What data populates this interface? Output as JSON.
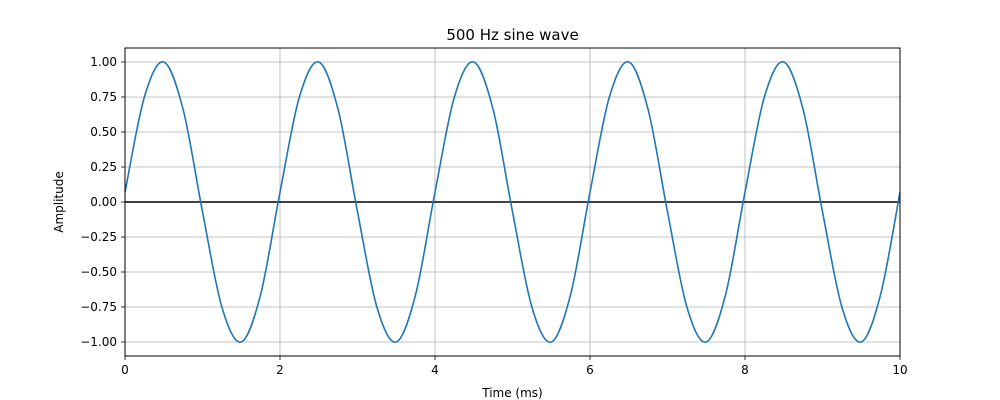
{
  "chart_data": {
    "type": "line",
    "title": "500 Hz sine wave",
    "xlabel": "Time (ms)",
    "ylabel": "Amplitude",
    "xlim": [
      0,
      10
    ],
    "ylim": [
      -1.1,
      1.1
    ],
    "xticks": [
      0,
      2,
      4,
      6,
      8,
      10
    ],
    "xtick_labels": [
      "0",
      "2",
      "4",
      "6",
      "8",
      "10"
    ],
    "yticks": [
      -1.0,
      -0.75,
      -0.5,
      -0.25,
      0.0,
      0.25,
      0.5,
      0.75,
      1.0
    ],
    "ytick_labels": [
      "−1.00",
      "−0.75",
      "−0.50",
      "−0.25",
      "0.00",
      "0.25",
      "0.50",
      "0.75",
      "1.00"
    ],
    "grid": true,
    "series": [
      {
        "color": "#1f77b4",
        "x": [
          0,
          0.25,
          0.5,
          0.75,
          1,
          1.25,
          1.5,
          1.75,
          2,
          2.25,
          2.5,
          2.75,
          3,
          3.25,
          3.5,
          3.75,
          4,
          4.25,
          4.5,
          4.75,
          5,
          5.25,
          5.5,
          5.75,
          6,
          6.25,
          6.5,
          6.75,
          7,
          7.25,
          7.5,
          7.75,
          8,
          8.25,
          8.5,
          8.75,
          9,
          9.25,
          9.5,
          9.75,
          10
        ],
        "y": [
          0.07,
          0.75,
          1.0,
          0.66,
          -0.07,
          -0.75,
          -1.0,
          -0.66,
          0.07,
          0.75,
          1.0,
          0.66,
          -0.07,
          -0.75,
          -1.0,
          -0.66,
          0.07,
          0.75,
          1.0,
          0.66,
          -0.07,
          -0.75,
          -1.0,
          -0.66,
          0.07,
          0.75,
          1.0,
          0.66,
          -0.07,
          -0.75,
          -1.0,
          -0.66,
          0.07,
          0.75,
          1.0,
          0.66,
          -0.07,
          -0.75,
          -1.0,
          -0.66,
          0.07
        ]
      }
    ],
    "reference_line": {
      "y": 0,
      "color": "#000000"
    },
    "grid_color": "#b0b0b0"
  }
}
